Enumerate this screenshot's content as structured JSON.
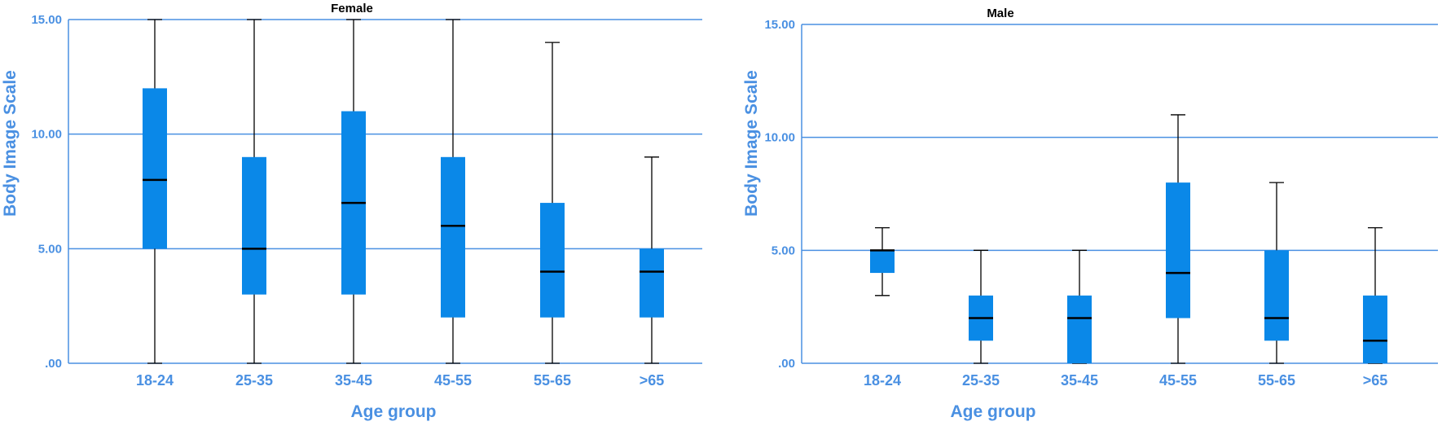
{
  "colors": {
    "box_fill": "#0a88e8",
    "axis": "#4a90e2",
    "median": "#000000",
    "whisker": "#000000"
  },
  "chart_data": [
    {
      "type": "boxplot",
      "title": "Female",
      "xlabel": "Age group",
      "ylabel": "Body Image Scale",
      "ylim": [
        0,
        15
      ],
      "yticks": [
        ".00",
        "5.00",
        "10.00",
        "15.00"
      ],
      "grid": "horizontal",
      "categories": [
        "18-24",
        "25-35",
        "35-45",
        "45-55",
        "55-65",
        ">65"
      ],
      "boxes": [
        {
          "min": 0,
          "q1": 5,
          "median": 8,
          "q3": 12,
          "max": 15
        },
        {
          "min": 0,
          "q1": 3,
          "median": 5,
          "q3": 9,
          "max": 15
        },
        {
          "min": 0,
          "q1": 3,
          "median": 7,
          "q3": 11,
          "max": 15
        },
        {
          "min": 0,
          "q1": 2,
          "median": 6,
          "q3": 9,
          "max": 15
        },
        {
          "min": 0,
          "q1": 2,
          "median": 4,
          "q3": 7,
          "max": 14
        },
        {
          "min": 0,
          "q1": 2,
          "median": 4,
          "q3": 5,
          "max": 9
        }
      ]
    },
    {
      "type": "boxplot",
      "title": "Male",
      "xlabel": "Age group",
      "ylabel": "Body Image Scale",
      "ylim": [
        0,
        15
      ],
      "yticks": [
        ".00",
        "5.00",
        "10.00",
        "15.00"
      ],
      "grid": "horizontal",
      "categories": [
        "18-24",
        "25-35",
        "35-45",
        "45-55",
        "55-65",
        ">65"
      ],
      "boxes": [
        {
          "min": 3,
          "q1": 4,
          "median": 5,
          "q3": 5,
          "max": 6
        },
        {
          "min": 0,
          "q1": 1,
          "median": 2,
          "q3": 3,
          "max": 5
        },
        {
          "min": 0,
          "q1": 0,
          "median": 2,
          "q3": 3,
          "max": 5
        },
        {
          "min": 0,
          "q1": 2,
          "median": 4,
          "q3": 8,
          "max": 11
        },
        {
          "min": 0,
          "q1": 1,
          "median": 2,
          "q3": 5,
          "max": 8
        },
        {
          "min": 0,
          "q1": 0,
          "median": 1,
          "q3": 3,
          "max": 6
        }
      ]
    }
  ]
}
